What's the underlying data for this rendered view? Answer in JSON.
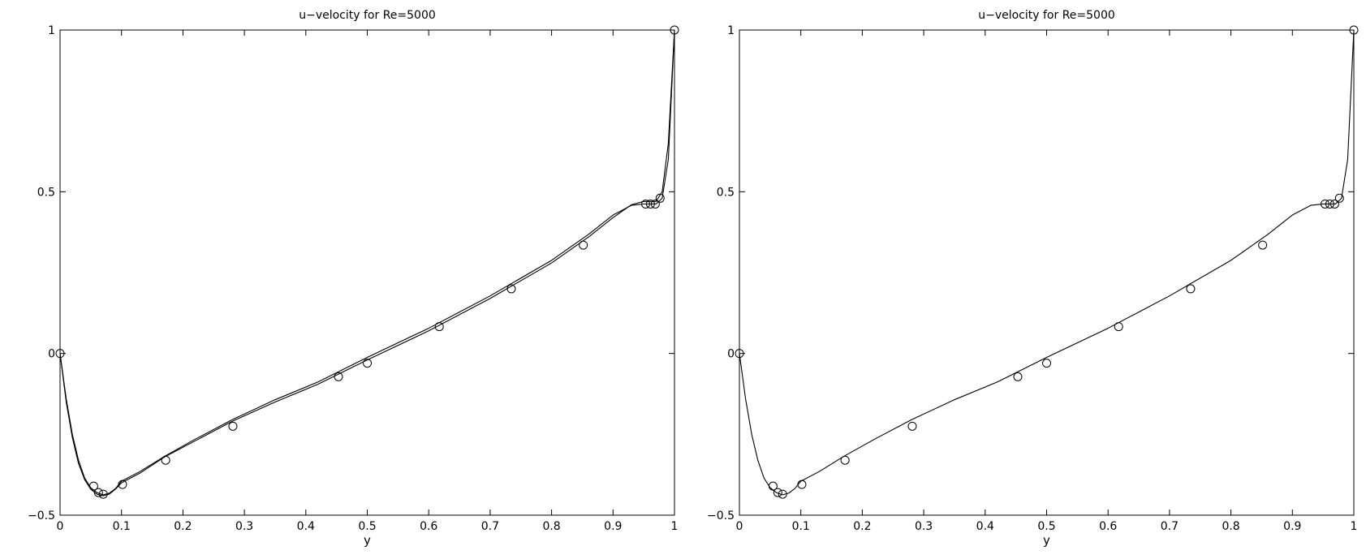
{
  "chart_data": [
    {
      "type": "line",
      "title": "u−velocity for Re=5000",
      "xlabel": "y",
      "ylabel": "",
      "xlim": [
        0,
        1
      ],
      "ylim": [
        -0.5,
        1
      ],
      "xticks": [
        "0",
        "0.1",
        "0.2",
        "0.3",
        "0.4",
        "0.5",
        "0.6",
        "0.7",
        "0.8",
        "0.9",
        "1"
      ],
      "yticks": [
        "−0.5",
        "0",
        "0.5",
        "1"
      ],
      "grid": false,
      "series": [
        {
          "style": "line",
          "x": [
            0,
            0.01,
            0.02,
            0.03,
            0.04,
            0.05,
            0.06,
            0.07,
            0.08,
            0.09,
            0.1,
            0.13,
            0.17,
            0.22,
            0.28,
            0.35,
            0.42,
            0.5,
            0.6,
            0.7,
            0.8,
            0.86,
            0.9,
            0.93,
            0.95,
            0.97,
            0.98,
            0.99,
            1
          ],
          "y": [
            0,
            -0.15,
            -0.26,
            -0.34,
            -0.39,
            -0.42,
            -0.435,
            -0.44,
            -0.435,
            -0.42,
            -0.4,
            -0.37,
            -0.32,
            -0.27,
            -0.21,
            -0.15,
            -0.095,
            -0.02,
            0.07,
            0.17,
            0.28,
            0.36,
            0.42,
            0.46,
            0.47,
            0.47,
            0.5,
            0.65,
            1
          ]
        },
        {
          "style": "line",
          "x": [
            0,
            0.01,
            0.02,
            0.03,
            0.04,
            0.05,
            0.06,
            0.07,
            0.08,
            0.09,
            0.1,
            0.13,
            0.17,
            0.22,
            0.28,
            0.35,
            0.42,
            0.5,
            0.6,
            0.7,
            0.8,
            0.86,
            0.9,
            0.93,
            0.95,
            0.97,
            0.98,
            0.99,
            1
          ],
          "y": [
            0,
            -0.14,
            -0.25,
            -0.33,
            -0.385,
            -0.415,
            -0.43,
            -0.437,
            -0.432,
            -0.418,
            -0.395,
            -0.365,
            -0.318,
            -0.265,
            -0.205,
            -0.143,
            -0.088,
            -0.012,
            0.078,
            0.178,
            0.288,
            0.368,
            0.428,
            0.458,
            0.462,
            0.462,
            0.48,
            0.6,
            1
          ]
        },
        {
          "style": "markers",
          "marker": "circle",
          "x": [
            0,
            0.0547,
            0.0625,
            0.0703,
            0.1016,
            0.1719,
            0.2813,
            0.4531,
            0.5,
            0.6172,
            0.7344,
            0.8516,
            0.9531,
            0.9609,
            0.9688,
            0.9766,
            1
          ],
          "y": [
            0,
            -0.41,
            -0.43,
            -0.435,
            -0.405,
            -0.33,
            -0.225,
            -0.072,
            -0.03,
            0.083,
            0.2,
            0.335,
            0.462,
            0.462,
            0.462,
            0.48,
            1
          ]
        }
      ]
    },
    {
      "type": "line",
      "title": "u−velocity for Re=5000",
      "xlabel": "y",
      "ylabel": "",
      "xlim": [
        0,
        1
      ],
      "ylim": [
        -0.5,
        1
      ],
      "xticks": [
        "0",
        "0.1",
        "0.2",
        "0.3",
        "0.4",
        "0.5",
        "0.6",
        "0.7",
        "0.8",
        "0.9",
        "1"
      ],
      "yticks": [
        "−0.5",
        "0",
        "0.5",
        "1"
      ],
      "grid": false,
      "series": [
        {
          "style": "line",
          "x": [
            0,
            0.01,
            0.02,
            0.03,
            0.04,
            0.05,
            0.06,
            0.07,
            0.08,
            0.09,
            0.1,
            0.13,
            0.17,
            0.22,
            0.28,
            0.35,
            0.42,
            0.5,
            0.6,
            0.7,
            0.8,
            0.86,
            0.9,
            0.93,
            0.95,
            0.97,
            0.98,
            0.99,
            1
          ],
          "y": [
            0,
            -0.14,
            -0.25,
            -0.33,
            -0.385,
            -0.415,
            -0.43,
            -0.437,
            -0.432,
            -0.418,
            -0.395,
            -0.365,
            -0.318,
            -0.265,
            -0.205,
            -0.143,
            -0.088,
            -0.012,
            0.078,
            0.178,
            0.288,
            0.368,
            0.428,
            0.458,
            0.462,
            0.462,
            0.48,
            0.6,
            1
          ]
        },
        {
          "style": "markers",
          "marker": "circle",
          "x": [
            0,
            0.0547,
            0.0625,
            0.0703,
            0.1016,
            0.1719,
            0.2813,
            0.4531,
            0.5,
            0.6172,
            0.7344,
            0.8516,
            0.9531,
            0.9609,
            0.9688,
            0.9766,
            1
          ],
          "y": [
            0,
            -0.41,
            -0.43,
            -0.435,
            -0.405,
            -0.33,
            -0.225,
            -0.072,
            -0.03,
            0.083,
            0.2,
            0.335,
            0.462,
            0.462,
            0.462,
            0.48,
            1
          ]
        }
      ]
    }
  ]
}
